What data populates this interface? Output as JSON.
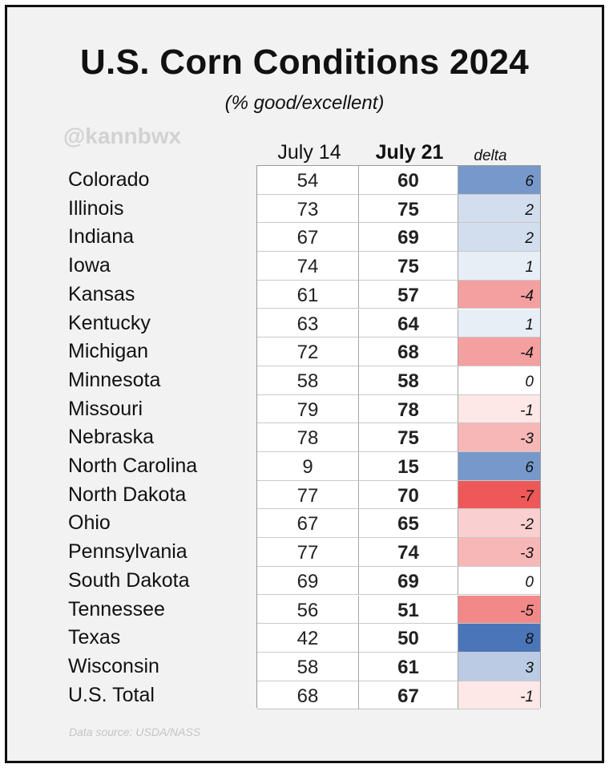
{
  "header": {
    "title": "U.S. Corn Conditions 2024",
    "subtitle": "(% good/excellent)",
    "handle": "@kannbwx"
  },
  "footer": {
    "source": "Data source: USDA/NASS"
  },
  "colors": {
    "positive_max": "#4a75b8",
    "negative_max": "#ee5858",
    "zero": "#ffffff"
  },
  "chart_data": {
    "type": "table",
    "columns": [
      "July 14",
      "July 21",
      "delta"
    ],
    "rows": [
      {
        "state": "Colorado",
        "july14": 54,
        "july21": 60,
        "delta": 6
      },
      {
        "state": "Illinois",
        "july14": 73,
        "july21": 75,
        "delta": 2
      },
      {
        "state": "Indiana",
        "july14": 67,
        "july21": 69,
        "delta": 2
      },
      {
        "state": "Iowa",
        "july14": 74,
        "july21": 75,
        "delta": 1
      },
      {
        "state": "Kansas",
        "july14": 61,
        "july21": 57,
        "delta": -4
      },
      {
        "state": "Kentucky",
        "july14": 63,
        "july21": 64,
        "delta": 1
      },
      {
        "state": "Michigan",
        "july14": 72,
        "july21": 68,
        "delta": -4
      },
      {
        "state": "Minnesota",
        "july14": 58,
        "july21": 58,
        "delta": 0
      },
      {
        "state": "Missouri",
        "july14": 79,
        "july21": 78,
        "delta": -1
      },
      {
        "state": "Nebraska",
        "july14": 78,
        "july21": 75,
        "delta": -3
      },
      {
        "state": "North Carolina",
        "july14": 9,
        "july21": 15,
        "delta": 6
      },
      {
        "state": "North Dakota",
        "july14": 77,
        "july21": 70,
        "delta": -7
      },
      {
        "state": "Ohio",
        "july14": 67,
        "july21": 65,
        "delta": -2
      },
      {
        "state": "Pennsylvania",
        "july14": 77,
        "july21": 74,
        "delta": -3
      },
      {
        "state": "South Dakota",
        "july14": 69,
        "july21": 69,
        "delta": 0
      },
      {
        "state": "Tennessee",
        "july14": 56,
        "july21": 51,
        "delta": -5
      },
      {
        "state": "Texas",
        "july14": 42,
        "july21": 50,
        "delta": 8
      },
      {
        "state": "Wisconsin",
        "july14": 58,
        "july21": 61,
        "delta": 3
      },
      {
        "state": "U.S. Total",
        "july14": 68,
        "july21": 67,
        "delta": -1
      }
    ]
  }
}
